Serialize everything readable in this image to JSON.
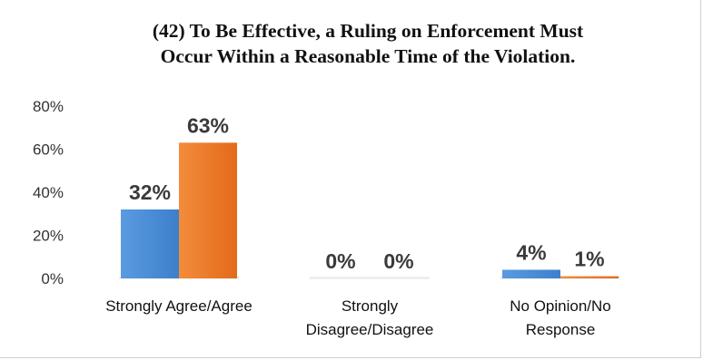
{
  "chart_data": {
    "type": "bar",
    "title_lines": [
      "(42) To Be Effective, a Ruling on Enforcement Must",
      "Occur Within a Reasonable Time of the Violation."
    ],
    "categories": [
      [
        "Strongly Agree/Agree"
      ],
      [
        "Strongly",
        "Disagree/Disagree"
      ],
      [
        "No Opinion/No",
        "Response"
      ]
    ],
    "series": [
      {
        "values": [
          32,
          0,
          4
        ],
        "labels": [
          "32%",
          "0%",
          "4%"
        ],
        "color": "#4a8fd8"
      },
      {
        "values": [
          63,
          0,
          1
        ],
        "labels": [
          "63%",
          "0%",
          "1%"
        ],
        "color": "#ef7f2f"
      }
    ],
    "yticks": [
      "0%",
      "20%",
      "40%",
      "60%",
      "80%"
    ],
    "ylim": [
      0,
      80
    ],
    "grid": false,
    "legend": "none"
  }
}
